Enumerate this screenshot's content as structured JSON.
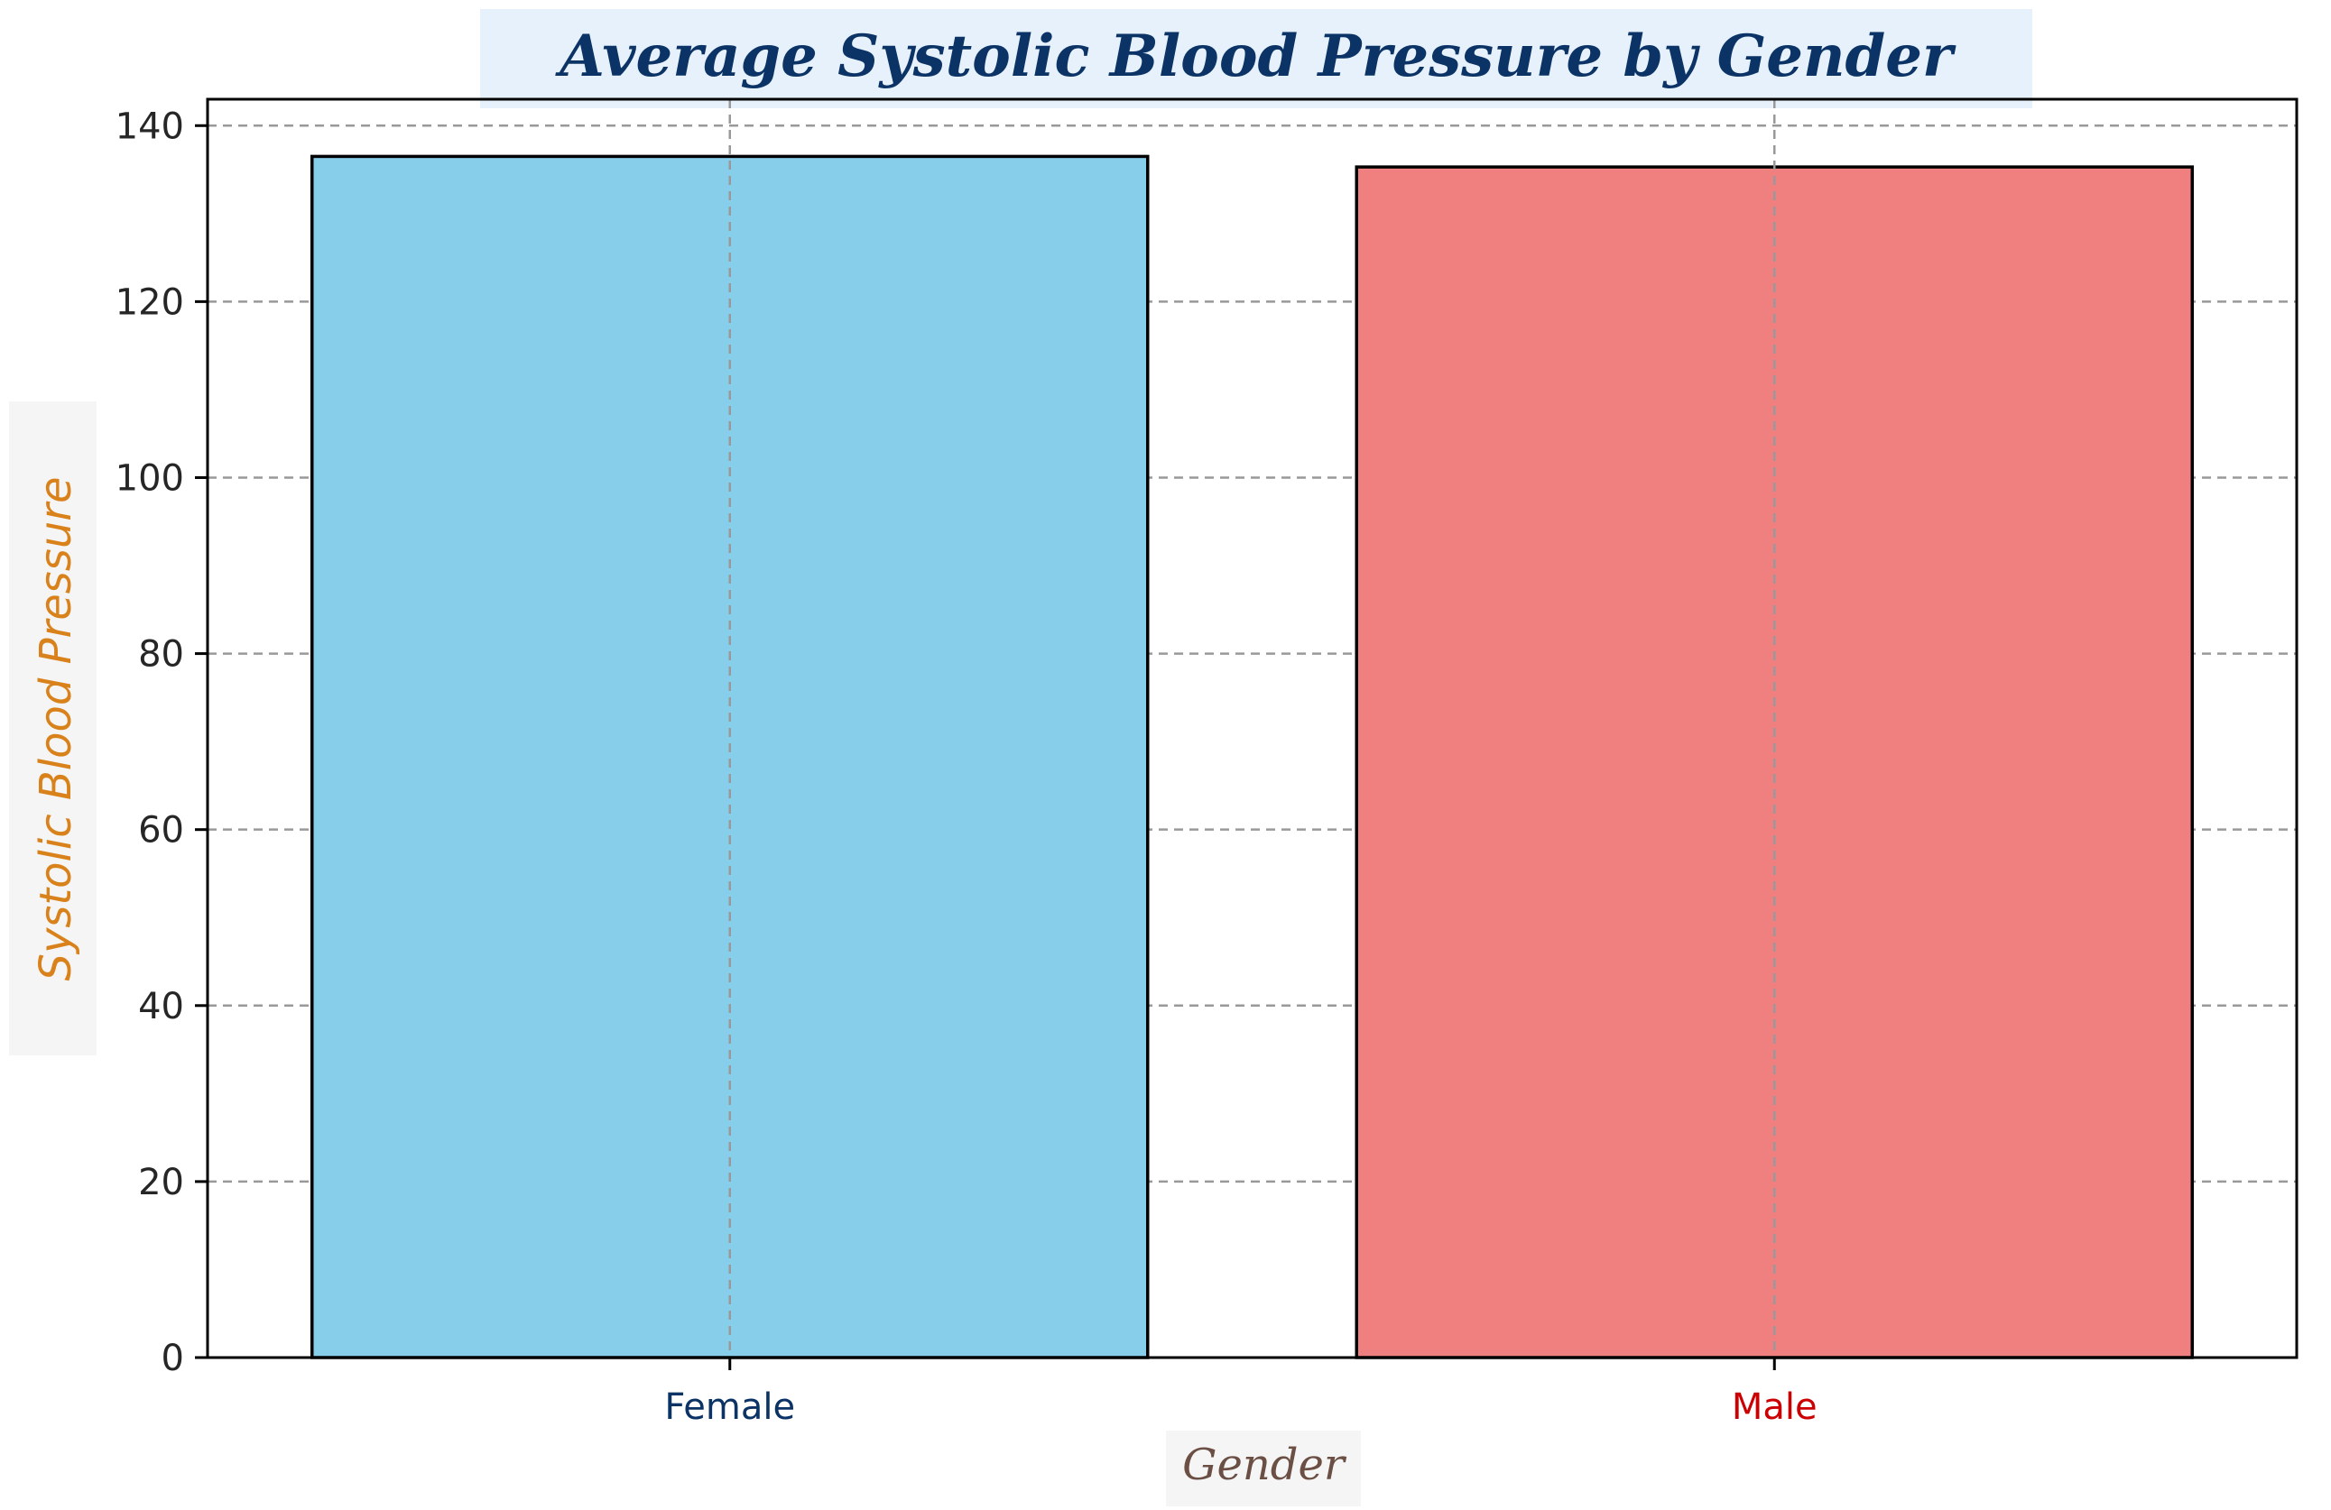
{
  "chart_data": {
    "type": "bar",
    "title": "Average Systolic Blood Pressure by Gender",
    "xlabel": "Gender",
    "ylabel": "Systolic Blood Pressure",
    "categories": [
      "Female",
      "Male"
    ],
    "values": [
      136.5,
      135.3
    ],
    "ylim": [
      0,
      143
    ],
    "yticks": [
      0,
      20,
      40,
      60,
      80,
      100,
      120,
      140
    ],
    "grid": true,
    "bar_colors": [
      "#87ceeb",
      "#f08080"
    ],
    "category_label_colors": [
      "#0b3366",
      "#cc0000"
    ],
    "title_background": "#e6f1fc",
    "label_background": "#f5f5f5"
  }
}
